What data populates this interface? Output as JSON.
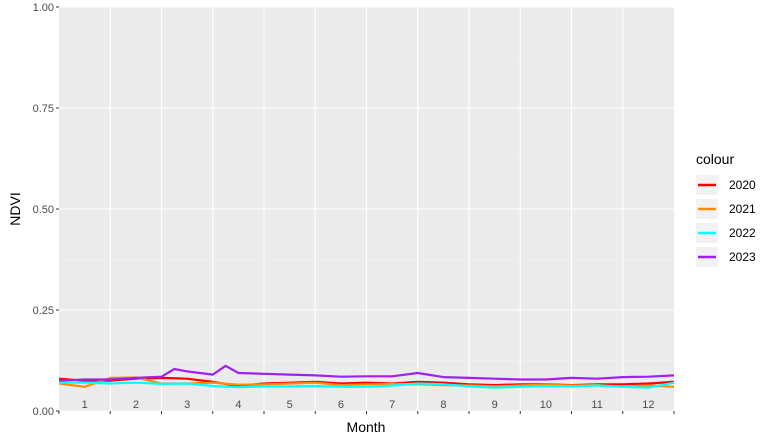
{
  "chart_data": {
    "type": "line",
    "title": "",
    "xlabel": "Month",
    "ylabel": "NDVI",
    "ylim": [
      0,
      1
    ],
    "xlim": [
      0.5,
      12.5
    ],
    "y_ticks": [
      0.0,
      0.25,
      0.5,
      0.75,
      1.0
    ],
    "y_tick_labels": [
      "0.00",
      "0.25",
      "0.50",
      "0.75",
      "1.00"
    ],
    "categories": [
      "1",
      "2",
      "3",
      "4",
      "5",
      "6",
      "7",
      "8",
      "9",
      "10",
      "11",
      "12"
    ],
    "grid": true,
    "legend": {
      "title": "colour",
      "position": "right"
    },
    "series": [
      {
        "name": "2020",
        "color": "#ff0000",
        "x": [
          0.5,
          1.0,
          1.5,
          2.0,
          2.5,
          3.0,
          3.5,
          4.0,
          4.5,
          5.0,
          5.5,
          6.0,
          6.5,
          7.0,
          7.5,
          8.0,
          8.5,
          9.0,
          9.5,
          10.0,
          10.5,
          11.0,
          11.5,
          12.0,
          12.5
        ],
        "values": [
          0.08,
          0.075,
          0.075,
          0.08,
          0.082,
          0.08,
          0.072,
          0.062,
          0.068,
          0.07,
          0.072,
          0.068,
          0.07,
          0.068,
          0.072,
          0.07,
          0.066,
          0.064,
          0.066,
          0.066,
          0.064,
          0.066,
          0.066,
          0.068,
          0.072
        ]
      },
      {
        "name": "2021",
        "color": "#ff8c00",
        "x": [
          0.5,
          1.0,
          1.5,
          2.0,
          2.5,
          3.0,
          3.5,
          4.0,
          4.5,
          5.0,
          5.5,
          6.0,
          6.5,
          7.0,
          7.5,
          8.0,
          8.5,
          9.0,
          9.5,
          10.0,
          10.5,
          11.0,
          11.5,
          12.0,
          12.5
        ],
        "values": [
          0.068,
          0.06,
          0.082,
          0.083,
          0.068,
          0.068,
          0.07,
          0.065,
          0.066,
          0.068,
          0.07,
          0.064,
          0.066,
          0.067,
          0.066,
          0.064,
          0.063,
          0.061,
          0.063,
          0.065,
          0.063,
          0.064,
          0.06,
          0.063,
          0.06
        ]
      },
      {
        "name": "2022",
        "color": "#00ffff",
        "x": [
          0.5,
          1.0,
          1.5,
          2.0,
          2.5,
          3.0,
          3.5,
          4.0,
          4.5,
          5.0,
          5.5,
          6.0,
          6.5,
          7.0,
          7.5,
          8.0,
          8.5,
          9.0,
          9.5,
          10.0,
          10.5,
          11.0,
          11.5,
          12.0,
          12.5
        ],
        "values": [
          0.07,
          0.07,
          0.068,
          0.07,
          0.067,
          0.068,
          0.062,
          0.059,
          0.061,
          0.061,
          0.062,
          0.06,
          0.06,
          0.063,
          0.068,
          0.066,
          0.061,
          0.058,
          0.06,
          0.062,
          0.061,
          0.063,
          0.06,
          0.058,
          0.07
        ]
      },
      {
        "name": "2023",
        "color": "#a020f0",
        "x": [
          0.5,
          1.0,
          1.5,
          2.0,
          2.5,
          2.75,
          3.0,
          3.5,
          3.75,
          4.0,
          4.5,
          5.0,
          5.5,
          6.0,
          6.5,
          7.0,
          7.5,
          8.0,
          8.5,
          9.0,
          9.5,
          10.0,
          10.5,
          11.0,
          11.5,
          12.0,
          12.5
        ],
        "values": [
          0.075,
          0.078,
          0.078,
          0.082,
          0.085,
          0.104,
          0.098,
          0.09,
          0.112,
          0.094,
          0.092,
          0.09,
          0.088,
          0.085,
          0.086,
          0.086,
          0.094,
          0.084,
          0.082,
          0.08,
          0.078,
          0.078,
          0.082,
          0.08,
          0.084,
          0.085,
          0.088
        ]
      }
    ]
  }
}
